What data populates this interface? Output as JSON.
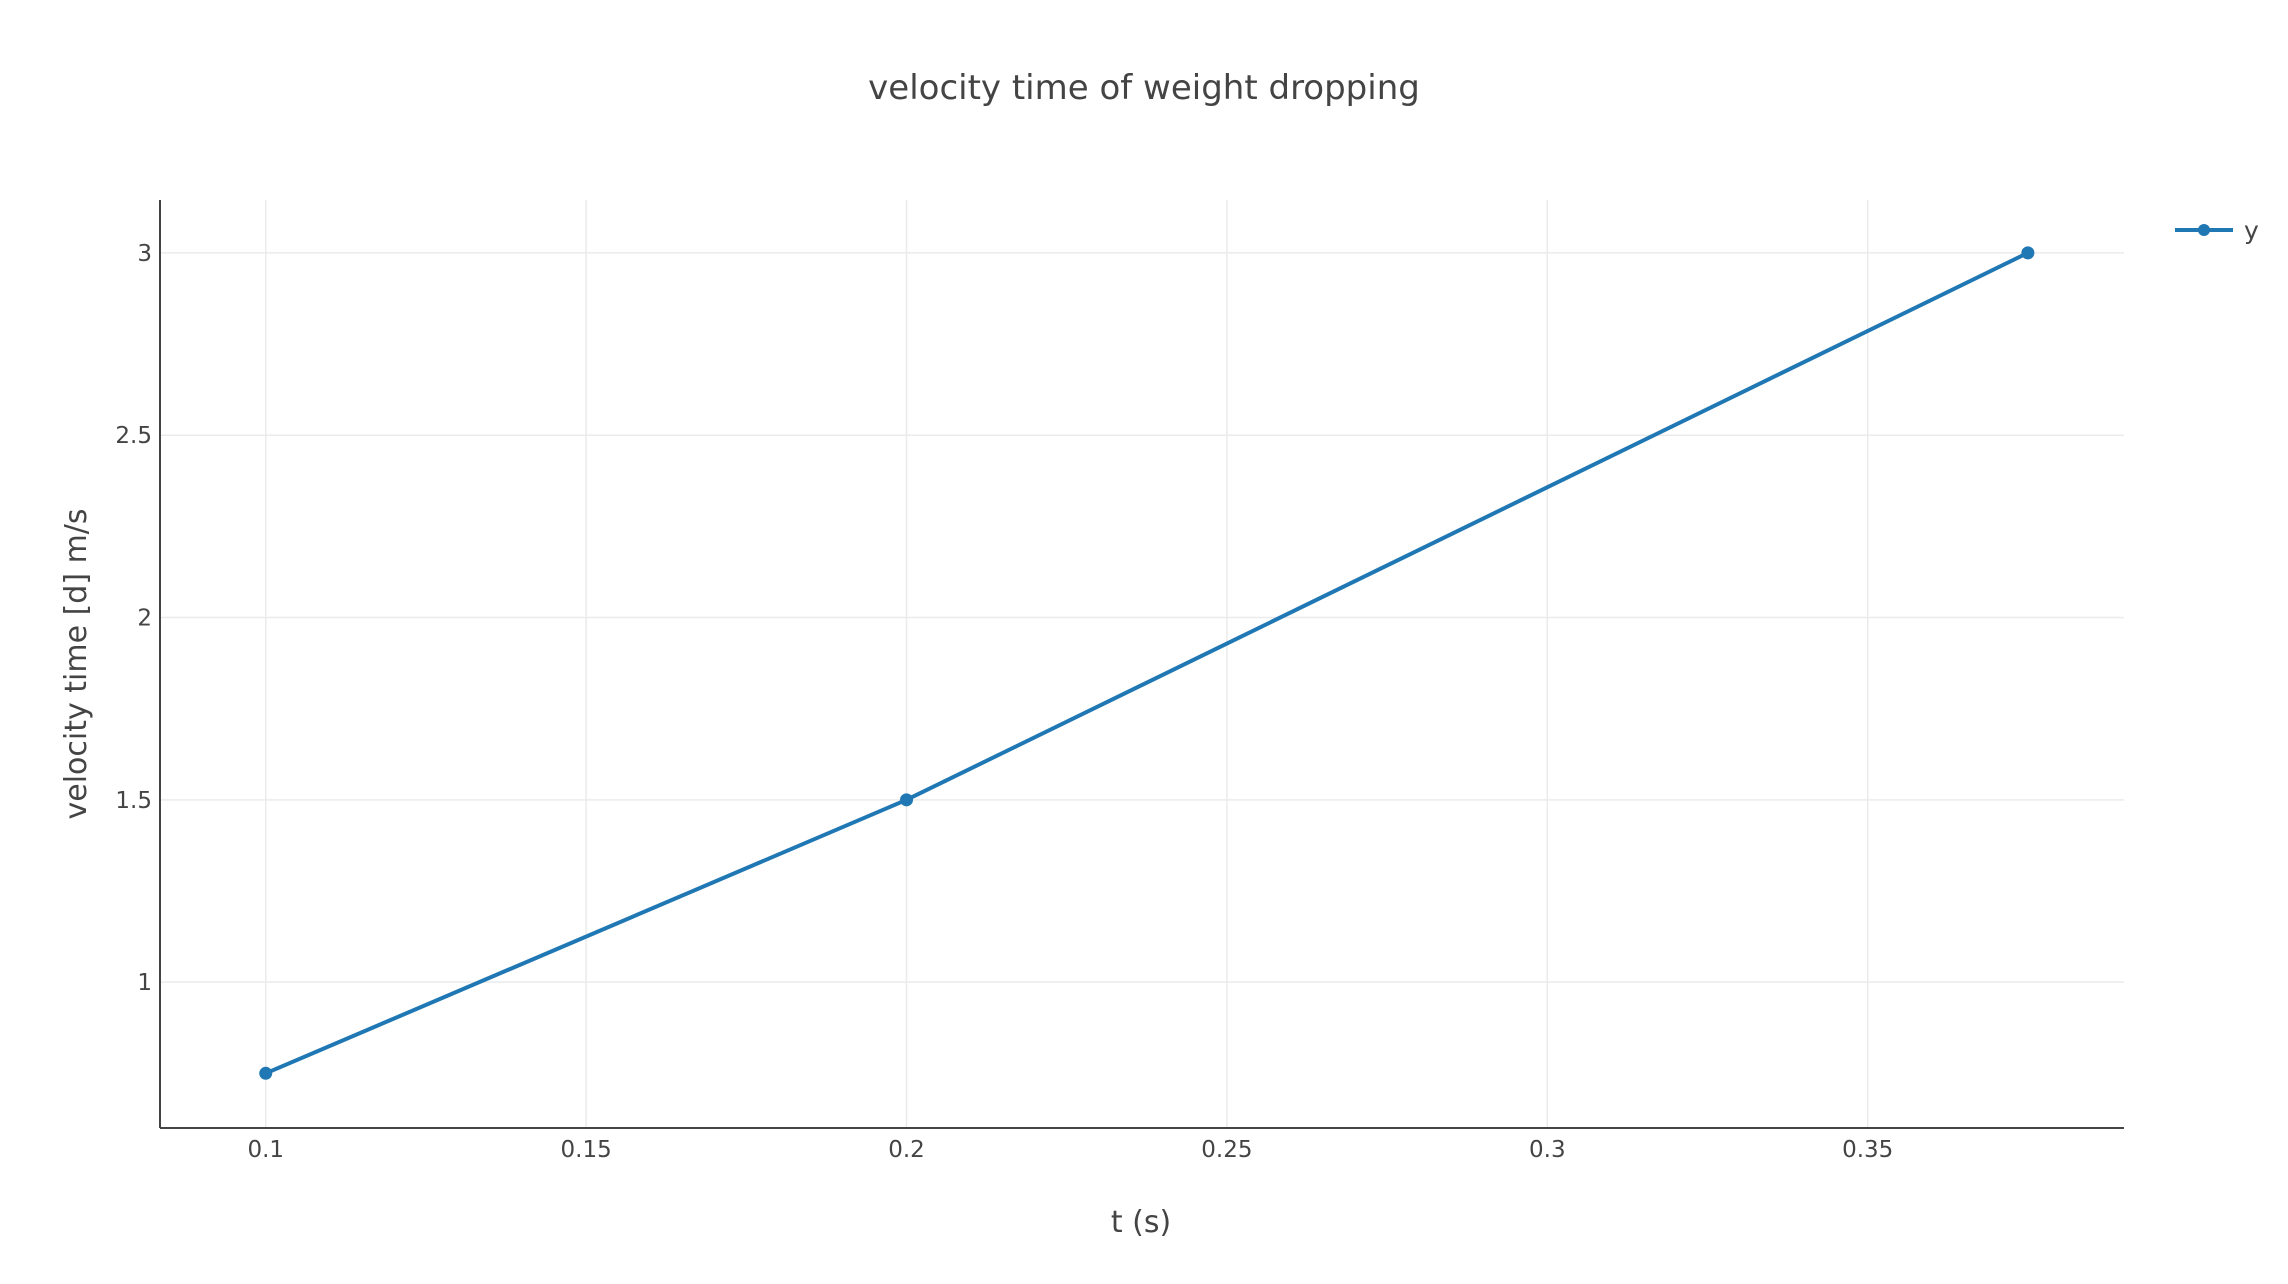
{
  "chart_data": {
    "type": "line",
    "title": "velocity time of weight dropping",
    "xlabel": "t (s)",
    "ylabel": "velocity time [d] m/s",
    "xlim": [
      0.0835,
      0.39
    ],
    "ylim": [
      0.6,
      3.145
    ],
    "x_ticks": [
      0.1,
      0.15,
      0.2,
      0.25,
      0.3,
      0.35
    ],
    "x_tick_labels": [
      "0.1",
      "0.15",
      "0.2",
      "0.25",
      "0.3",
      "0.35"
    ],
    "y_ticks": [
      1,
      1.5,
      2,
      2.5,
      3
    ],
    "y_tick_labels": [
      "1",
      "1.5",
      "2",
      "2.5",
      "3"
    ],
    "grid": true,
    "legend_position": "top-right",
    "series": [
      {
        "name": "y",
        "color": "#1f77b4",
        "mode": "lines+markers",
        "x": [
          0.1,
          0.2,
          0.375
        ],
        "y": [
          0.75,
          1.5,
          3
        ]
      }
    ]
  }
}
